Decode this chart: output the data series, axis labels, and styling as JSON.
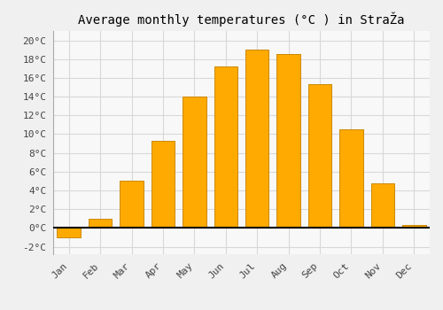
{
  "months": [
    "Jan",
    "Feb",
    "Mar",
    "Apr",
    "May",
    "Jun",
    "Jul",
    "Aug",
    "Sep",
    "Oct",
    "Nov",
    "Dec"
  ],
  "temperatures": [
    -1.0,
    1.0,
    5.0,
    9.3,
    14.0,
    17.2,
    19.0,
    18.5,
    15.3,
    10.5,
    4.8,
    0.3
  ],
  "bar_color": "#FFAA00",
  "bar_edge_color": "#CC8800",
  "title": "Average monthly temperatures (°C ) in StraŽa",
  "ylabel_ticks": [
    "-2°C",
    "0°C",
    "2°C",
    "4°C",
    "6°C",
    "8°C",
    "10°C",
    "12°C",
    "14°C",
    "16°C",
    "18°C",
    "20°C"
  ],
  "ytick_values": [
    -2,
    0,
    2,
    4,
    6,
    8,
    10,
    12,
    14,
    16,
    18,
    20
  ],
  "ylim": [
    -2.8,
    21.0
  ],
  "background_color": "#f0f0f0",
  "plot_bg_color": "#f8f8f8",
  "grid_color": "#d8d8d8",
  "title_fontsize": 10,
  "tick_fontsize": 8,
  "bar_width": 0.75
}
